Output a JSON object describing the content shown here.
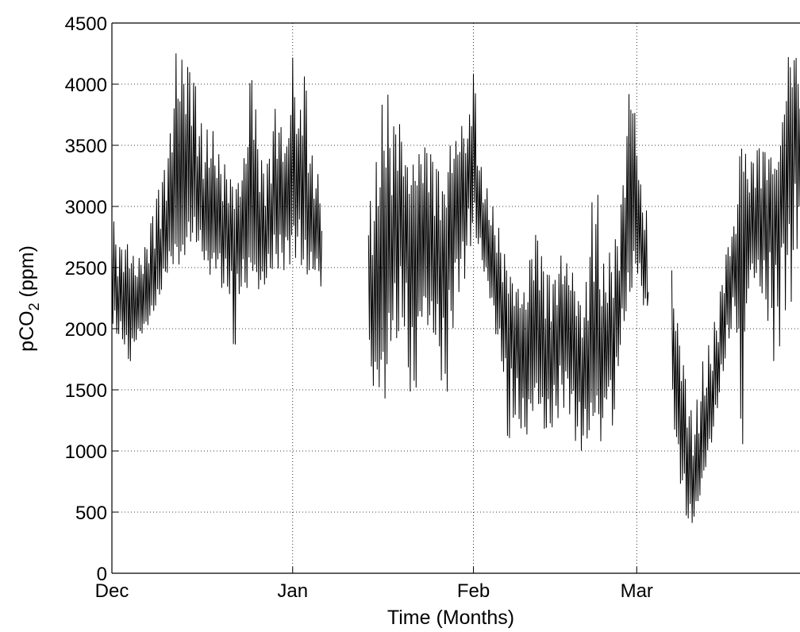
{
  "chart_data": {
    "type": "line",
    "title": "",
    "xlabel": "Time (Months)",
    "ylabel": "pCO",
    "ylabel_subscript": "2",
    "ylabel_unit": " (ppm)",
    "ylim": [
      0,
      4500
    ],
    "xlim": [
      0,
      118
    ],
    "yticks": [
      0,
      500,
      1000,
      1500,
      2000,
      2500,
      3000,
      3500,
      4000,
      4500
    ],
    "ytick_labels": [
      "0",
      "500",
      "1000",
      "1500",
      "2000",
      "2500",
      "3000",
      "3500",
      "4000",
      "4500"
    ],
    "xticks": [
      0,
      31,
      62,
      90
    ],
    "xtick_labels": [
      "Dec",
      "Jan",
      "Feb",
      "Mar"
    ],
    "grid": true,
    "grid_style": "dotted",
    "line_color": "#000000",
    "series": [
      {
        "segments": [
          {
            "x": [
              0,
              1,
              2,
              3,
              4,
              5,
              6,
              7,
              8,
              9,
              10,
              11,
              12,
              13,
              14,
              15,
              16,
              17,
              18,
              19,
              20,
              21,
              22,
              23,
              24,
              25,
              26,
              27,
              28,
              29,
              30,
              31,
              32,
              33,
              34,
              35,
              36
            ],
            "y": [
              2450,
              2200,
              2100,
              2000,
              2100,
              2150,
              2250,
              2400,
              2500,
              2600,
              2750,
              2850,
              2800,
              2950,
              3100,
              3050,
              2900,
              3000,
              3050,
              2850,
              2800,
              2700,
              2750,
              2900,
              2850,
              2800,
              2750,
              2900,
              3000,
              2950,
              3000,
              3100,
              3100,
              3000,
              2900,
              2850,
              2800
            ],
            "lo": [
              2000,
              1950,
              1900,
              1700,
              1900,
              1950,
              2000,
              2100,
              2200,
              2400,
              2500,
              2550,
              2500,
              2700,
              2700,
              2650,
              2500,
              2400,
              2500,
              2300,
              2350,
              1750,
              2350,
              2300,
              2500,
              2300,
              2300,
              2400,
              2500,
              2450,
              2500,
              2550,
              2600,
              2400,
              2400,
              2450,
              2300
            ],
            "hi": [
              3000,
              2700,
              2750,
              2750,
              2550,
              2600,
              2700,
              2950,
              3150,
              3300,
              3600,
              4280,
              4280,
              4280,
              4200,
              3750,
              3600,
              3700,
              3450,
              3400,
              3300,
              3200,
              3250,
              3500,
              4280,
              3550,
              3300,
              3400,
              3800,
              3650,
              3500,
              4280,
              3700,
              4280,
              3500,
              3300,
              3200
            ]
          },
          {
            "x": [
              44,
              45,
              46,
              47,
              48,
              49,
              50,
              51,
              52,
              53,
              54,
              55,
              56,
              57,
              58,
              59,
              60,
              61,
              62,
              63,
              64,
              65,
              66,
              67,
              68,
              69,
              70,
              71,
              72,
              73,
              74,
              75,
              76,
              77,
              78,
              79,
              80,
              81,
              82,
              83,
              84,
              85,
              86,
              87,
              88,
              89,
              90,
              91,
              92
            ],
            "y": [
              2100,
              2300,
              2500,
              2700,
              2800,
              2750,
              2900,
              2700,
              2600,
              2800,
              2850,
              2700,
              2600,
              2650,
              2800,
              2900,
              3000,
              3200,
              3300,
              3000,
              2800,
              2600,
              2400,
              2200,
              2100,
              1900,
              1800,
              1700,
              1900,
              2000,
              1900,
              1750,
              1800,
              2000,
              1900,
              1800,
              1650,
              1600,
              1700,
              1850,
              1800,
              1900,
              2000,
              2100,
              2500,
              2800,
              3000,
              2700,
              2300
            ],
            "lo": [
              1800,
              1400,
              1500,
              1400,
              2000,
              1900,
              2100,
              1500,
              1400,
              2100,
              2000,
              1900,
              1800,
              1200,
              1700,
              2300,
              2300,
              2500,
              2800,
              2600,
              2400,
              2200,
              1900,
              1700,
              1000,
              1300,
              1200,
              1100,
              1300,
              1400,
              1100,
              1100,
              1200,
              1300,
              1400,
              1200,
              950,
              1000,
              1100,
              1300,
              1000,
              1500,
              1150,
              1800,
              2100,
              2300,
              2500,
              2200,
              2100
            ],
            "hi": [
              3000,
              3200,
              3700,
              4100,
              3600,
              3900,
              3500,
              3300,
              3400,
              3450,
              3500,
              3400,
              3300,
              3100,
              3500,
              3550,
              3700,
              3600,
              4260,
              3400,
              3200,
              3050,
              2900,
              2700,
              2500,
              2400,
              2350,
              2300,
              2700,
              2800,
              2500,
              2450,
              2400,
              2600,
              2550,
              2500,
              2300,
              2200,
              2900,
              3400,
              2500,
              2600,
              2700,
              2900,
              3500,
              4280,
              3550,
              3000,
              2950
            ]
          },
          {
            "x": [
              96,
              97,
              98,
              99,
              100,
              101,
              102,
              103,
              104,
              105,
              106,
              107,
              108,
              109,
              110,
              111,
              112,
              113,
              114,
              115,
              116,
              117,
              118
            ],
            "y": [
              1700,
              1300,
              1000,
              800,
              700,
              900,
              1200,
              1400,
              1700,
              2000,
              2300,
              2500,
              2700,
              2800,
              2900,
              2950,
              3000,
              3100,
              3200,
              3300,
              3400,
              3600,
              3800
            ],
            "lo": [
              1500,
              850,
              600,
              300,
              450,
              650,
              900,
              1100,
              1400,
              1700,
              1950,
              2200,
              800,
              2300,
              2400,
              2300,
              2100,
              1900,
              1500,
              2200,
              2100,
              2300,
              2900
            ],
            "hi": [
              2500,
              2100,
              1800,
              1400,
              1300,
              1700,
              1800,
              2000,
              2200,
              2600,
              2800,
              2900,
              3700,
              3300,
              3400,
              3500,
              3450,
              3400,
              3300,
              3700,
              4280,
              4280,
              4280
            ]
          }
        ]
      }
    ]
  }
}
